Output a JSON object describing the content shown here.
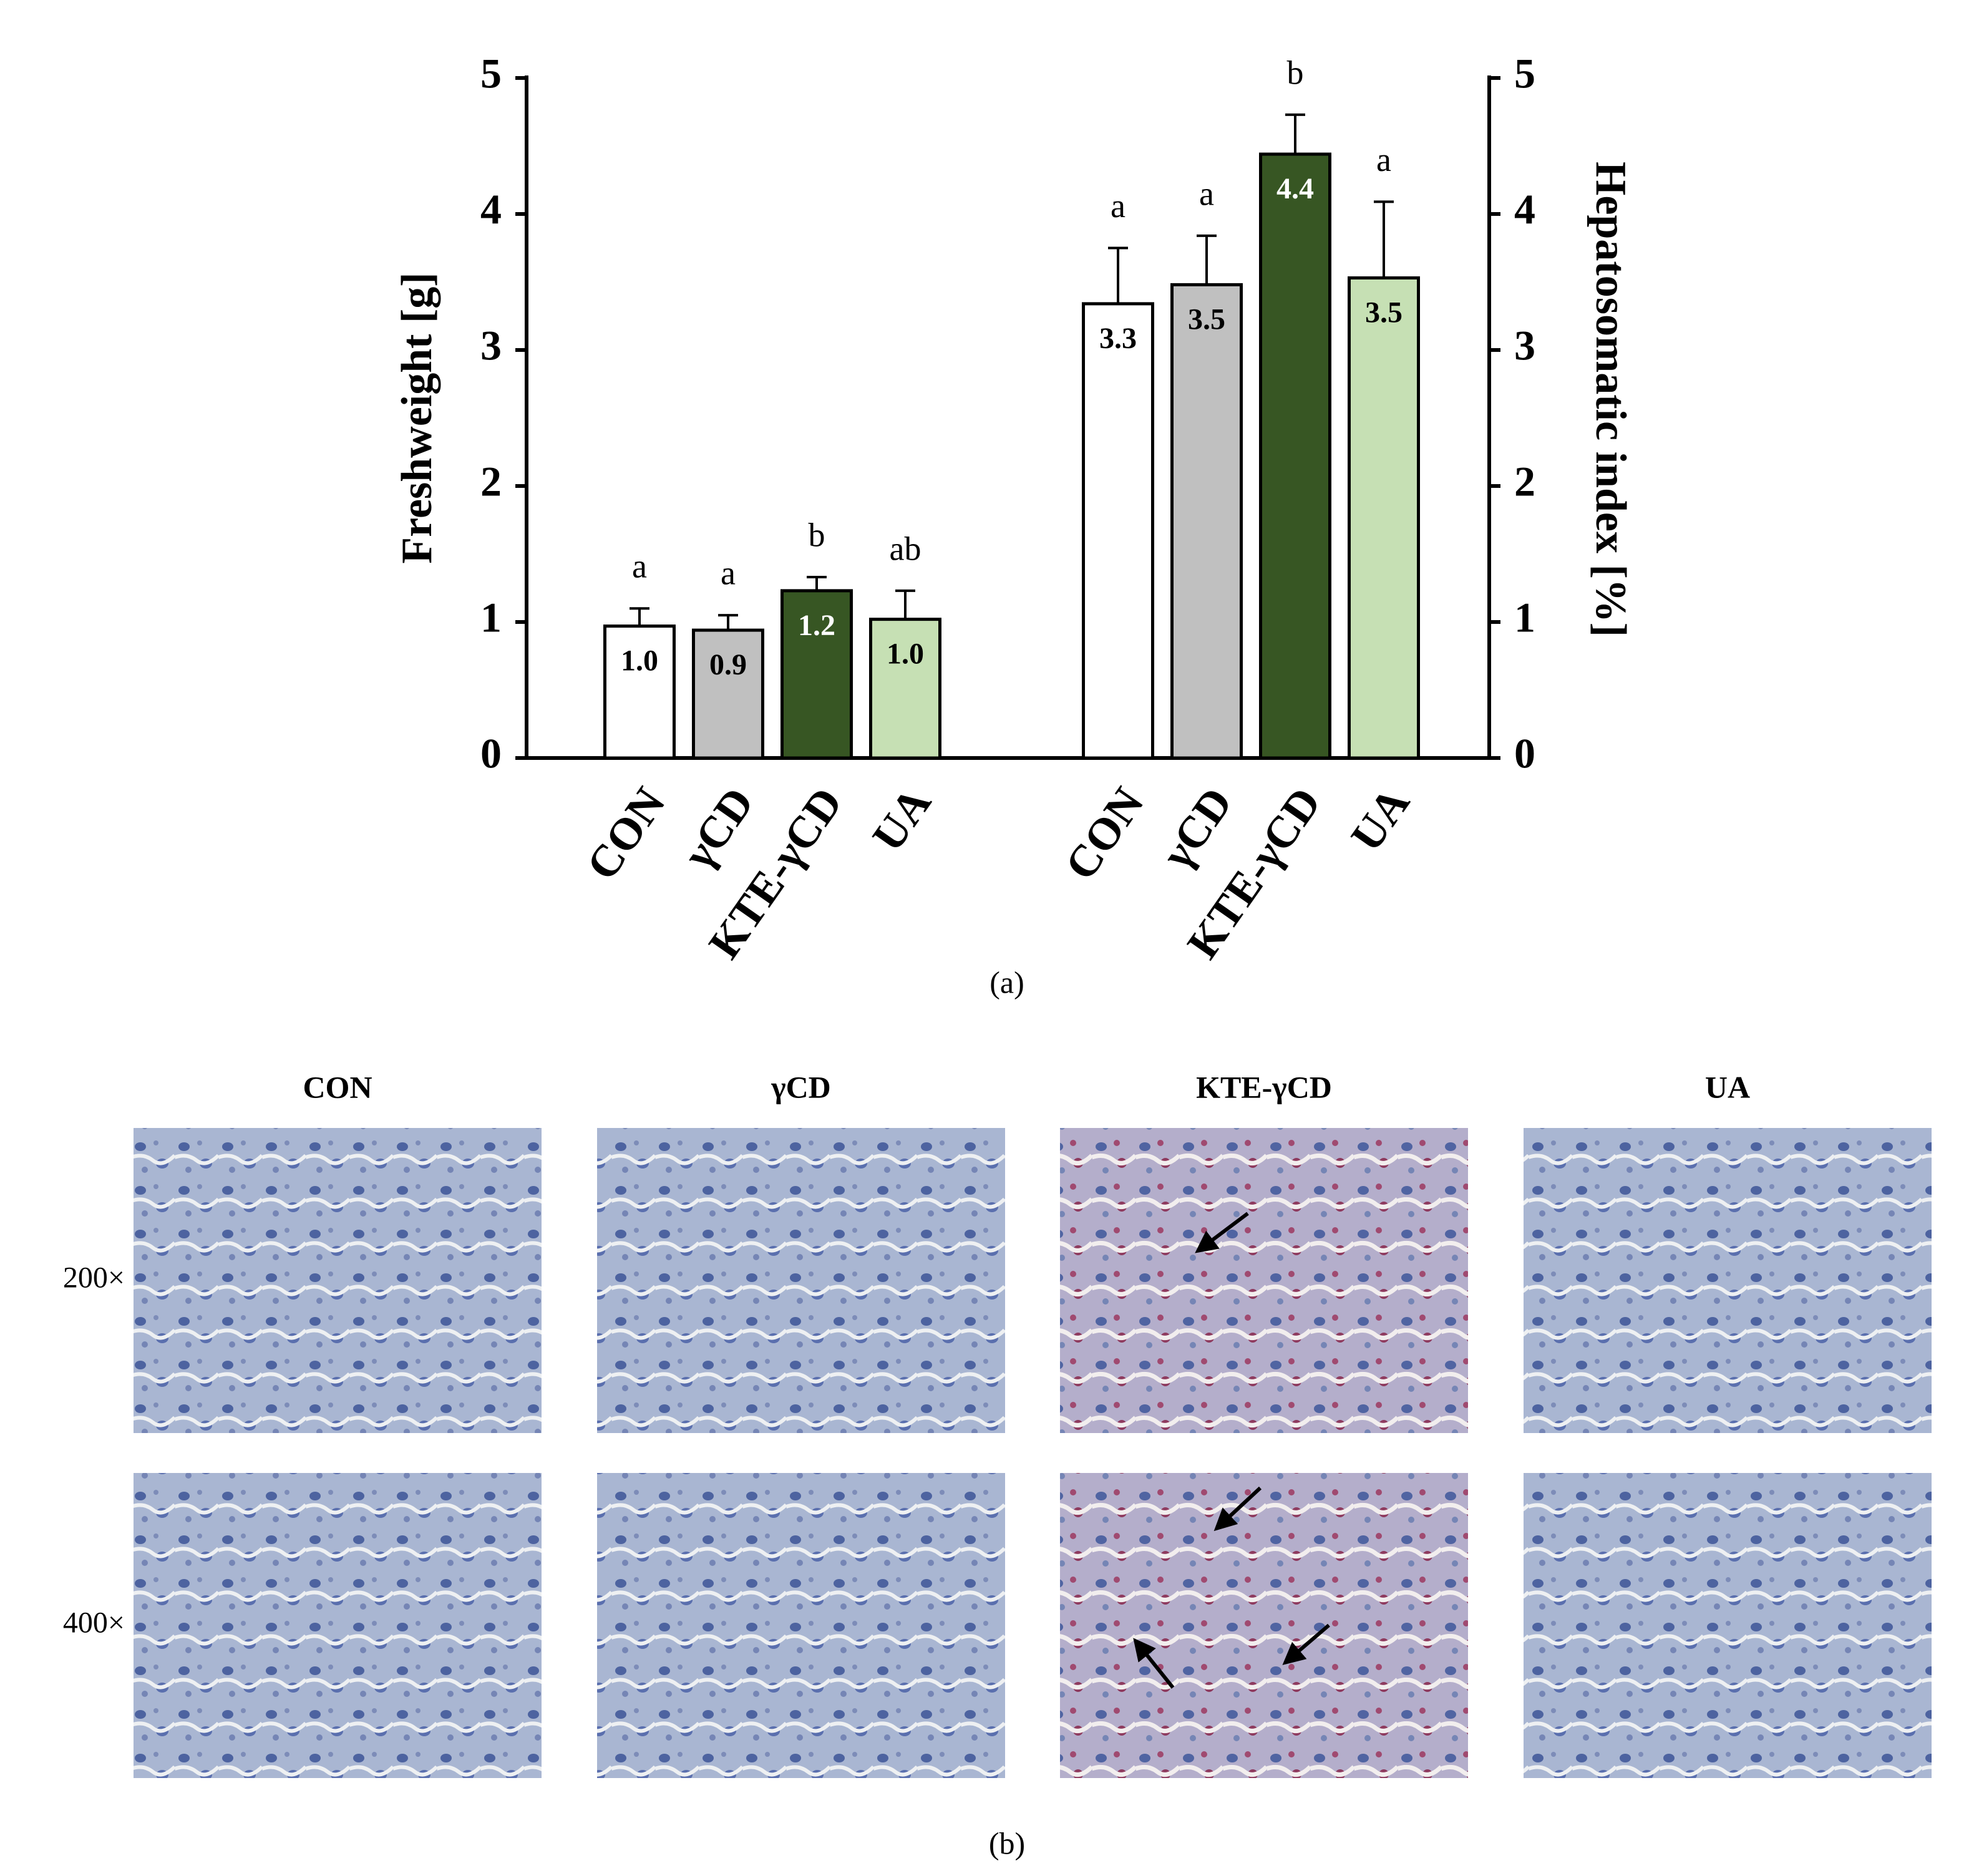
{
  "chart_data": {
    "type": "bar",
    "categories": [
      "CON",
      "γCD",
      "KTE-γCD",
      "UA"
    ],
    "ylabel": "Freshweight [g]",
    "y2label": "Hepatosomatic index [%]",
    "ylim": [
      0,
      5
    ],
    "yticks": [
      0,
      1,
      2,
      3,
      4,
      5
    ],
    "y2lim": [
      0,
      5
    ],
    "y2ticks": [
      0,
      1,
      2,
      3,
      4,
      5
    ],
    "caption": "(a)",
    "series": [
      {
        "axis": "y",
        "values": [
          0.97,
          0.94,
          1.23,
          1.02
        ],
        "value_labels": [
          "1.0",
          "0.9",
          "1.2",
          "1.0"
        ],
        "errors": [
          0.13,
          0.11,
          0.1,
          0.21
        ],
        "letters": [
          "a",
          "a",
          "b",
          "ab"
        ],
        "colors": [
          "#ffffff",
          "#c0c0c0",
          "#375623",
          "#c6e0b4"
        ]
      },
      {
        "axis": "y2",
        "values": [
          3.34,
          3.48,
          4.44,
          3.53
        ],
        "value_labels": [
          "3.3",
          "3.5",
          "4.4",
          "3.5"
        ],
        "errors": [
          0.41,
          0.36,
          0.29,
          0.56
        ],
        "letters": [
          "a",
          "a",
          "b",
          "a"
        ],
        "colors": [
          "#ffffff",
          "#c0c0c0",
          "#375623",
          "#c6e0b4"
        ]
      }
    ]
  },
  "micrographs": {
    "columns": [
      "CON",
      "γCD",
      "KTE-γCD",
      "UA"
    ],
    "rows": [
      "200×",
      "400×"
    ],
    "caption": "(b)"
  }
}
